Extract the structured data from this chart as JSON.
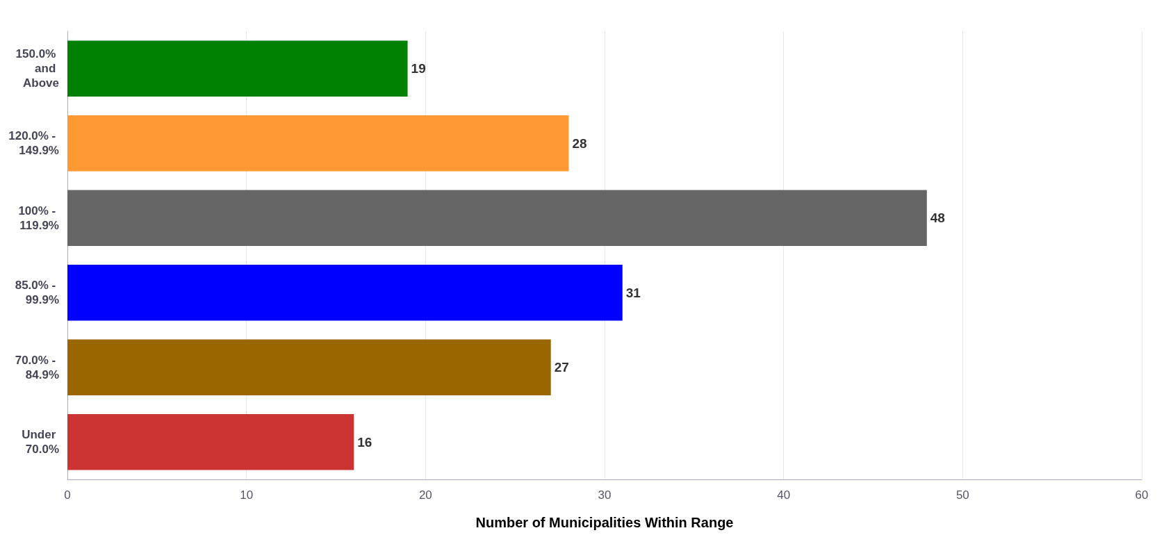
{
  "chart_data": {
    "type": "bar",
    "orientation": "horizontal",
    "xlabel": "Number of Municipalities Within Range",
    "categories": [
      "150.0% and Above",
      "120.0% - 149.9%",
      "100% - 119.9%",
      "85.0% - 99.9%",
      "70.0% - 84.9%",
      "Under 70.0%"
    ],
    "values": [
      19,
      28,
      48,
      31,
      27,
      16
    ],
    "colors": [
      "#008000",
      "#ff9933",
      "#666666",
      "#0000ff",
      "#996600",
      "#cc3333"
    ],
    "xlim": [
      0,
      60
    ],
    "xticks": [
      0,
      10,
      20,
      30,
      40,
      50,
      60
    ],
    "grid": "x",
    "data_labels": true
  }
}
